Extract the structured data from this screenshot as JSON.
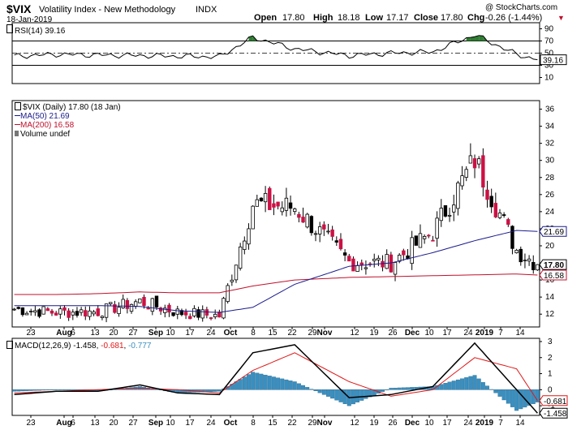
{
  "header": {
    "symbol": "$VIX",
    "name": "Volatility Index - New Methodology",
    "exchange": "INDX",
    "date": "18-Jan-2019",
    "open_label": "Open",
    "open": "17.80",
    "high_label": "High",
    "high": "18.18",
    "low_label": "Low",
    "low": "17.17",
    "close_label": "Close",
    "close": "17.80",
    "chg_label": "Chg",
    "chg": "-0.26 (-1.44%)",
    "chg_arrow": "▼",
    "copyright": "@ StockCharts.com"
  },
  "colors": {
    "up_candle": "#ffffff",
    "down_candle": "#cc1144",
    "black_candle": "#000000",
    "ma50": "#1a1a8c",
    "ma200": "#c0102c",
    "rsi_fill": "#2e7d32",
    "macd_hist": "#3a8fc0",
    "macd_signal": "#e01818",
    "macd_line": "#000000"
  },
  "rsi_panel": {
    "legend": "RSI(14) 39.16",
    "current_label": "39.16",
    "ticks": [
      "90",
      "70",
      "50",
      "30",
      "10"
    ]
  },
  "price_panel": {
    "legend_main": "$VIX (Daily) 17.80 (18 Jan)",
    "legend_ma50": "MA(50) 21.69",
    "legend_ma200": "MA(200) 16.58",
    "legend_volume": "Volume undef",
    "ticks": [
      "36",
      "34",
      "32",
      "30",
      "28",
      "26",
      "24",
      "22",
      "20",
      "18",
      "16",
      "14",
      "12"
    ],
    "tag_ma50": "21.69",
    "tag_close": "17.80",
    "tag_ma200": "16.58"
  },
  "macd_panel": {
    "legend_prefix": "MACD(12,26,9)",
    "legend_macd": "-1.458",
    "legend_signal": "-0.681",
    "legend_hist": "-0.777",
    "ticks": [
      "3",
      "2",
      "1",
      "0",
      "-1"
    ],
    "tag_signal": "-0.681",
    "tag_macd": "-1.458"
  },
  "xaxis_labels": [
    {
      "text": "23",
      "bold": false
    },
    {
      "text": "Aug",
      "bold": true
    },
    {
      "text": "6",
      "bold": false
    },
    {
      "text": "13",
      "bold": false
    },
    {
      "text": "20",
      "bold": false
    },
    {
      "text": "27",
      "bold": false
    },
    {
      "text": "Sep",
      "bold": true
    },
    {
      "text": "10",
      "bold": false
    },
    {
      "text": "17",
      "bold": false
    },
    {
      "text": "24",
      "bold": false
    },
    {
      "text": "Oct",
      "bold": true
    },
    {
      "text": "8",
      "bold": false
    },
    {
      "text": "15",
      "bold": false
    },
    {
      "text": "22",
      "bold": false
    },
    {
      "text": "29",
      "bold": false
    },
    {
      "text": "Nov",
      "bold": true
    },
    {
      "text": "12",
      "bold": false
    },
    {
      "text": "19",
      "bold": false
    },
    {
      "text": "26",
      "bold": false
    },
    {
      "text": "Dec",
      "bold": true
    },
    {
      "text": "10",
      "bold": false
    },
    {
      "text": "17",
      "bold": false
    },
    {
      "text": "24",
      "bold": false
    },
    {
      "text": "2019",
      "bold": true
    },
    {
      "text": "7",
      "bold": false
    },
    {
      "text": "14",
      "bold": false
    }
  ],
  "chart_data": [
    {
      "type": "line",
      "title": "RSI(14)",
      "ylim": [
        0,
        100
      ],
      "reference_lines": [
        70,
        50,
        30
      ],
      "x": [
        "Jul 23",
        "Aug 6",
        "Aug 20",
        "Sep 4",
        "Sep 17",
        "Oct 1",
        "Oct 11",
        "Oct 25",
        "Nov 12",
        "Nov 26",
        "Dec 10",
        "Dec 24",
        "Jan 7",
        "Jan 18"
      ],
      "series": [
        {
          "name": "RSI(14)",
          "values": [
            45,
            48,
            47,
            46,
            45,
            44,
            76,
            57,
            46,
            50,
            52,
            80,
            48,
            39.16
          ]
        }
      ]
    },
    {
      "type": "candlestick",
      "title": "$VIX (Daily)",
      "ylim": [
        10.5,
        37
      ],
      "legend": "top-left",
      "x": [
        "Jul 23",
        "Aug 6",
        "Aug 20",
        "Sep 4",
        "Sep 17",
        "Oct 1",
        "Oct 11",
        "Oct 25",
        "Nov 12",
        "Nov 26",
        "Dec 10",
        "Dec 24",
        "Jan 7",
        "Jan 18"
      ],
      "series": [
        {
          "name": "$VIX",
          "values": [
            12.6,
            12.2,
            12.3,
            13.5,
            12.2,
            11.8,
            24.9,
            24.5,
            18.1,
            18.0,
            21.6,
            30.1,
            19.5,
            17.8
          ]
        },
        {
          "name": "MA(50)",
          "values": [
            13.0,
            13.0,
            13.0,
            12.9,
            12.4,
            12.2,
            12.8,
            15.5,
            17.6,
            18.0,
            19.2,
            20.6,
            21.8,
            21.69
          ]
        },
        {
          "name": "MA(200)",
          "values": [
            14.3,
            14.3,
            14.4,
            14.6,
            14.5,
            14.5,
            15.3,
            16.0,
            16.3,
            16.4,
            16.5,
            16.6,
            16.7,
            16.58
          ]
        }
      ]
    },
    {
      "type": "line",
      "title": "MACD(12,26,9)",
      "ylim": [
        -1.6,
        3.2
      ],
      "x": [
        "Jul 23",
        "Aug 6",
        "Aug 20",
        "Sep 4",
        "Sep 17",
        "Oct 1",
        "Oct 11",
        "Oct 25",
        "Nov 12",
        "Nov 26",
        "Dec 10",
        "Dec 24",
        "Jan 7",
        "Jan 18"
      ],
      "series": [
        {
          "name": "MACD",
          "values": [
            -0.3,
            -0.1,
            -0.1,
            0.3,
            -0.2,
            -0.3,
            2.3,
            2.8,
            -0.5,
            -0.3,
            0.2,
            2.9,
            0.0,
            -1.458
          ]
        },
        {
          "name": "Signal",
          "values": [
            -0.2,
            -0.1,
            0.0,
            0.1,
            0.0,
            -0.2,
            1.2,
            2.3,
            0.5,
            -0.4,
            0.0,
            2.0,
            1.3,
            -0.681
          ]
        },
        {
          "name": "Histogram",
          "values": [
            -0.1,
            0.0,
            -0.1,
            0.2,
            -0.2,
            -0.1,
            1.1,
            0.5,
            -1.0,
            0.1,
            0.2,
            0.9,
            -1.3,
            -0.777
          ]
        }
      ]
    }
  ]
}
